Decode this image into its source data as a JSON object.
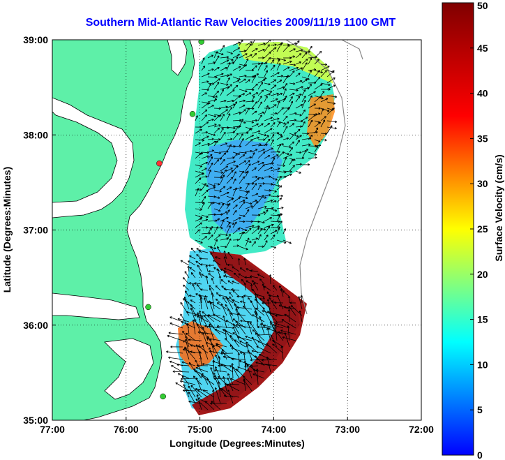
{
  "title": "Southern Mid-Atlantic Raw Velocities 2009/11/19 1100 GMT",
  "map": {
    "xlabel": "Longitude (Degrees:Minutes)",
    "ylabel": "Latitude (Degrees:Minutes)",
    "lon_range": [
      -77,
      -72
    ],
    "lat_range": [
      35,
      39
    ],
    "lon_ticks": [
      "77:00",
      "76:00",
      "75:00",
      "74:00",
      "73:00",
      "72:00"
    ],
    "lat_ticks": [
      "39:00",
      "38:00",
      "37:00",
      "36:00",
      "35:00"
    ],
    "grid": "dotted",
    "land_color": "#5ef0a8",
    "site_markers": [
      {
        "lon": -74.98,
        "lat": 38.98,
        "color": "#33cc33"
      },
      {
        "lon": -75.1,
        "lat": 38.22,
        "color": "#33cc33"
      },
      {
        "lon": -75.55,
        "lat": 37.7,
        "color": "#ff3333"
      },
      {
        "lon": -75.7,
        "lat": 36.19,
        "color": "#33cc33"
      },
      {
        "lon": -75.5,
        "lat": 35.25,
        "color": "#33cc33"
      }
    ]
  },
  "colorbar": {
    "label": "Surface Velocity (cm/s)",
    "min": 0,
    "max": 50,
    "ticks": [
      "0",
      "5",
      "10",
      "15",
      "20",
      "25",
      "30",
      "35",
      "40",
      "45",
      "50"
    ]
  }
}
